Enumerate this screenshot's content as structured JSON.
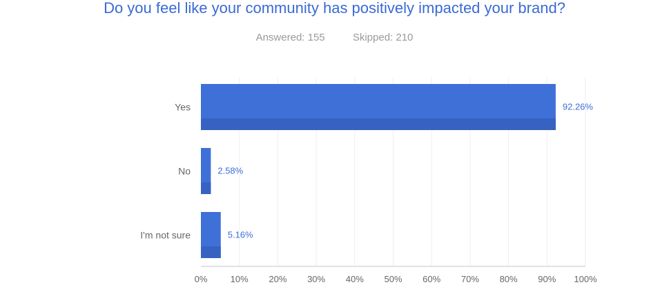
{
  "title": "Do you feel like your community has positively impacted your brand?",
  "answered": "Answered: 155",
  "skipped": "Skipped: 210",
  "chart_data": {
    "type": "bar",
    "orientation": "horizontal",
    "categories": [
      "Yes",
      "No",
      "I'm not sure"
    ],
    "values": [
      92.26,
      2.58,
      5.16
    ],
    "data_labels": [
      "92.26%",
      "2.58%",
      "5.16%"
    ],
    "xlim": [
      0,
      100
    ],
    "xticks": [
      "0%",
      "10%",
      "20%",
      "30%",
      "40%",
      "50%",
      "60%",
      "70%",
      "80%",
      "90%",
      "100%"
    ],
    "grid": true,
    "colors": {
      "bar": "#3f70d8",
      "bar_shade": "#3762c2",
      "label": "#3d6fd8"
    }
  }
}
